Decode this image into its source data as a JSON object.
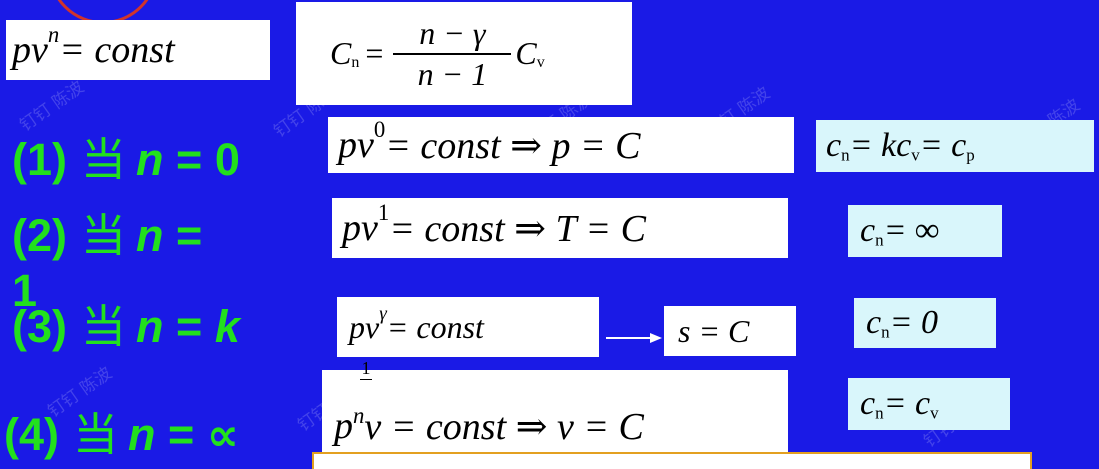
{
  "header_eq": {
    "base": "pv",
    "exp": "n",
    "rest": " = const"
  },
  "cn_formula": {
    "lhs": "C",
    "lhs_sub": "n",
    "eq": " = ",
    "numerator": "n − γ",
    "denominator": "n − 1",
    "rhs": "C",
    "rhs_sub": "v"
  },
  "cases": [
    {
      "label": "(1)",
      "dang": "当",
      "var": "n",
      "op": " = ",
      "value": "0",
      "eq_base": "pv",
      "eq_exp": "0",
      "eq_rest": " = const ⇒ p = C",
      "cn_lhs": "c",
      "cn_lhs_sub": "n",
      "cn_rhs": " = kc",
      "cn_rhs_sub": "v",
      "cn_rhs2": " = c",
      "cn_rhs2_sub": "p"
    },
    {
      "label": "(2)",
      "dang": "当",
      "var": "n",
      "op": " = ",
      "value": "1",
      "eq_base": "pv",
      "eq_exp": "1",
      "eq_rest": " = const ⇒ T = C",
      "cn_lhs": "c",
      "cn_lhs_sub": "n",
      "cn_rhs": " = ∞"
    },
    {
      "label": "(3)",
      "dang": "当",
      "var": "n",
      "op": " = ",
      "value": "k",
      "eq_base": "pv",
      "eq_exp": "γ",
      "eq_rest": " = const",
      "result": "s = C",
      "cn_lhs": "c",
      "cn_lhs_sub": "n",
      "cn_rhs": " = 0"
    },
    {
      "label": "(4)",
      "dang": "当",
      "var": "n",
      "op": " = ",
      "value": "∝",
      "eq_frac": "1",
      "eq_base": "p",
      "eq_exp": "n",
      "eq_rest": "v = const ⇒ v = C",
      "cn_lhs": "c",
      "cn_lhs_sub": "n",
      "cn_rhs": " = c",
      "cn_rhs_sub": "v"
    }
  ],
  "watermark": "钉钉 陈波",
  "colors": {
    "background": "#1a1ae6",
    "label": "#22e01d",
    "circle": "#d0342c",
    "box_highlight": "#d9f6fb",
    "bottom_box_border": "#e3a020"
  }
}
